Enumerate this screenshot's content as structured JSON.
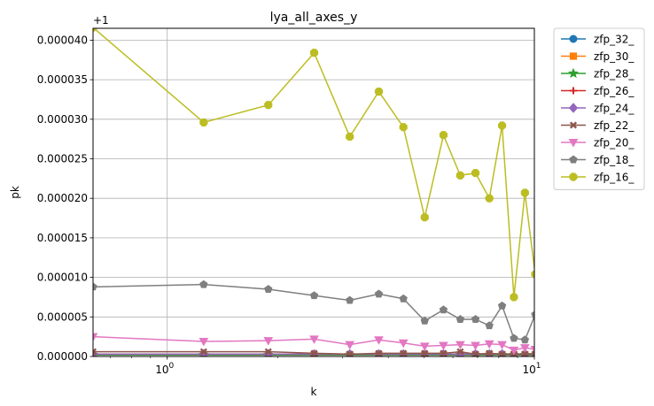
{
  "chart_data": {
    "type": "line",
    "title": "lya_all_axes_y",
    "xlabel": "k",
    "ylabel": "pk",
    "x_scale": "log",
    "xlim": [
      0.628,
      10.0
    ],
    "ylim": [
      0.0,
      4.15e-05
    ],
    "y_offset_label": "+1",
    "x_ticks": [
      {
        "value": 1,
        "label": "10",
        "exp": "0"
      },
      {
        "value": 10,
        "label": "10",
        "exp": "1"
      }
    ],
    "y_ticks": [
      {
        "value": 0.0,
        "label": "0.000000"
      },
      {
        "value": 5e-06,
        "label": "0.000005"
      },
      {
        "value": 1e-05,
        "label": "0.000010"
      },
      {
        "value": 1.5e-05,
        "label": "0.000015"
      },
      {
        "value": 2e-05,
        "label": "0.000020"
      },
      {
        "value": 2.5e-05,
        "label": "0.000025"
      },
      {
        "value": 3e-05,
        "label": "0.000030"
      },
      {
        "value": 3.5e-05,
        "label": "0.000035"
      },
      {
        "value": 4e-05,
        "label": "0.000040"
      }
    ],
    "grid": true,
    "legend_position": "outside-right",
    "x": [
      0.628,
      1.257,
      1.885,
      2.513,
      3.142,
      3.77,
      4.398,
      5.027,
      5.655,
      6.283,
      6.912,
      7.54,
      8.168,
      8.796,
      9.425,
      10.053
    ],
    "series": [
      {
        "name": "zfp_32_",
        "color": "#1f77b4",
        "marker": "circle",
        "values": [
          2e-07,
          2e-07,
          2e-07,
          2e-07,
          2e-07,
          2e-07,
          2e-07,
          2e-07,
          2e-07,
          2e-07,
          2e-07,
          2e-07,
          2e-07,
          2e-07,
          2e-07,
          2e-07
        ]
      },
      {
        "name": "zfp_30_",
        "color": "#ff7f0e",
        "marker": "square",
        "values": [
          2e-07,
          2e-07,
          2e-07,
          2e-07,
          2e-07,
          2e-07,
          2e-07,
          2e-07,
          2e-07,
          2e-07,
          2e-07,
          2e-07,
          2e-07,
          2e-07,
          2e-07,
          2e-07
        ]
      },
      {
        "name": "zfp_28_",
        "color": "#2ca02c",
        "marker": "star",
        "values": [
          2e-07,
          2e-07,
          2e-07,
          2e-07,
          2e-07,
          2e-07,
          2e-07,
          2e-07,
          2e-07,
          2e-07,
          2e-07,
          2e-07,
          2e-07,
          2e-07,
          2e-07,
          2e-07
        ]
      },
      {
        "name": "zfp_26_",
        "color": "#d62728",
        "marker": "plus",
        "values": [
          3e-07,
          3e-07,
          3e-07,
          3e-07,
          3e-07,
          3e-07,
          3e-07,
          3e-07,
          3e-07,
          3e-07,
          3e-07,
          3e-07,
          3e-07,
          3e-07,
          3e-07,
          3e-07
        ]
      },
      {
        "name": "zfp_24_",
        "color": "#9467bd",
        "marker": "diamond",
        "values": [
          3e-07,
          3e-07,
          3e-07,
          3e-07,
          3e-07,
          3e-07,
          3e-07,
          3e-07,
          3e-07,
          3e-07,
          3e-07,
          3e-07,
          3e-07,
          3e-07,
          3e-07,
          3e-07
        ]
      },
      {
        "name": "zfp_22_",
        "color": "#8c564b",
        "marker": "x",
        "values": [
          6e-07,
          6e-07,
          6e-07,
          4e-07,
          3e-07,
          4e-07,
          4e-07,
          4e-07,
          4e-07,
          6e-07,
          3e-07,
          4e-07,
          3e-07,
          3e-07,
          3e-07,
          3e-07
        ]
      },
      {
        "name": "zfp_20_",
        "color": "#e377c2",
        "marker": "triangle-down",
        "values": [
          2.5e-06,
          1.9e-06,
          2e-06,
          2.2e-06,
          1.5e-06,
          2.1e-06,
          1.7e-06,
          1.3e-06,
          1.4e-06,
          1.5e-06,
          1.4e-06,
          1.6e-06,
          1.5e-06,
          8e-07,
          1.1e-06,
          9e-07
        ]
      },
      {
        "name": "zfp_18_",
        "color": "#7f7f7f",
        "marker": "pentagon",
        "values": [
          8.8e-06,
          9.1e-06,
          8.5e-06,
          7.7e-06,
          7.1e-06,
          7.9e-06,
          7.3e-06,
          4.5e-06,
          5.9e-06,
          4.7e-06,
          4.7e-06,
          3.9e-06,
          6.4e-06,
          2.3e-06,
          2.1e-06,
          5.3e-06
        ]
      },
      {
        "name": "zfp_16_",
        "color": "#bcbd22",
        "marker": "octagon",
        "values": [
          4.16e-05,
          2.96e-05,
          3.18e-05,
          3.84e-05,
          2.78e-05,
          3.35e-05,
          2.9e-05,
          1.76e-05,
          2.8e-05,
          2.29e-05,
          2.32e-05,
          2e-05,
          2.92e-05,
          7.5e-06,
          2.07e-05,
          1.04e-05
        ]
      }
    ]
  }
}
